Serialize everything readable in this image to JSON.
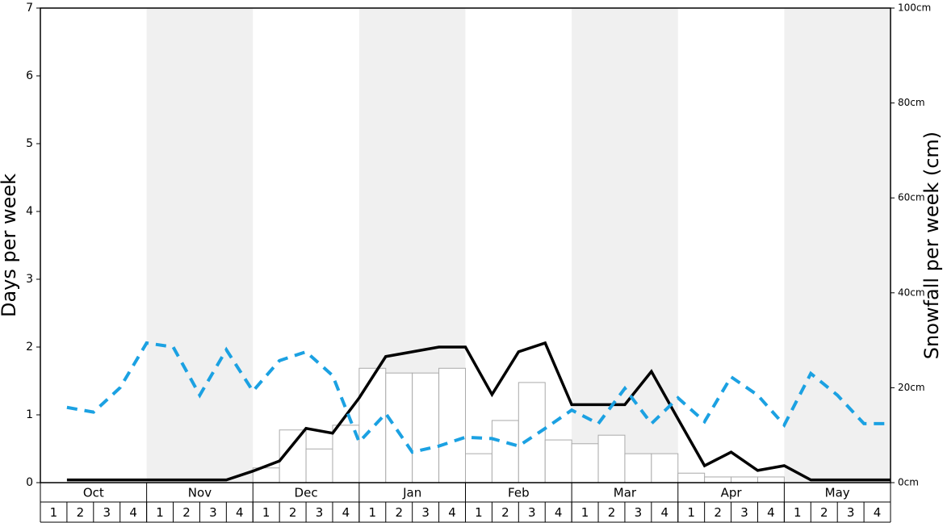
{
  "chart_data": {
    "type": "combo",
    "y_label": "Days per week",
    "y2_label": "Snowfall per week (cm)",
    "months": [
      "Oct",
      "Nov",
      "Dec",
      "Jan",
      "Feb",
      "Mar",
      "Apr",
      "May"
    ],
    "weeks": [
      1,
      2,
      3,
      4
    ],
    "ylim": [
      0,
      7
    ],
    "yticks": [
      0,
      1,
      2,
      3,
      4,
      5,
      6,
      7
    ],
    "y2lim": [
      0,
      100
    ],
    "y2ticks": [
      {
        "value": 0,
        "label": "0cm"
      },
      {
        "value": 20,
        "label": "20cm"
      },
      {
        "value": 40,
        "label": "40cm"
      },
      {
        "value": 60,
        "label": "60cm"
      },
      {
        "value": 80,
        "label": "80cm"
      },
      {
        "value": 100,
        "label": "100cm"
      }
    ],
    "shade_color": "#f0f0f0",
    "series": [
      {
        "type": "bar",
        "axis": "y2",
        "color": "#ffffff",
        "stroke": "#aaaaaa",
        "values": [
          0,
          0,
          0,
          0,
          0,
          0,
          0,
          0,
          3.1,
          11.1,
          7.1,
          12.1,
          24.1,
          23.1,
          23.1,
          24.1,
          6.1,
          13.1,
          21.1,
          9.0,
          8.2,
          10.0,
          6.1,
          6.1,
          2.0,
          1.2,
          1.2,
          1.2,
          0,
          0,
          0,
          0
        ]
      },
      {
        "type": "line",
        "color": "#000000",
        "values": [
          0.04,
          0.04,
          0.04,
          0.04,
          0.04,
          0.04,
          0.04,
          0.17,
          0.32,
          0.8,
          0.73,
          1.25,
          1.86,
          1.93,
          2.0,
          2.0,
          1.3,
          1.93,
          2.06,
          1.15,
          1.15,
          1.15,
          1.64,
          0.94,
          0.25,
          0.45,
          0.18,
          0.25,
          0.04,
          0.04,
          0.04,
          0.04
        ]
      },
      {
        "type": "line",
        "color": "#1ba1e2",
        "dashed": true,
        "values": [
          1.11,
          1.04,
          1.4,
          2.06,
          2.0,
          1.29,
          1.96,
          1.35,
          1.8,
          1.93,
          1.58,
          0.6,
          1.02,
          0.45,
          0.54,
          0.67,
          0.65,
          0.54,
          0.8,
          1.07,
          0.87,
          1.39,
          0.87,
          1.25,
          0.9,
          1.56,
          1.29,
          0.85,
          1.61,
          1.29,
          0.87,
          0.87
        ]
      }
    ]
  }
}
